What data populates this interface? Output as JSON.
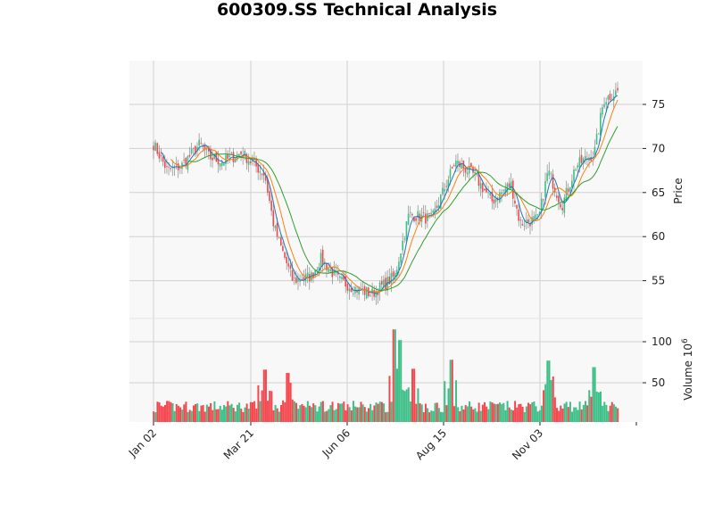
{
  "chart_data": {
    "type": "candlestick",
    "title": "600309.SS Technical Analysis",
    "panels": [
      {
        "name": "price",
        "ylabel": "Price",
        "yticks": [
          55,
          60,
          65,
          70,
          75
        ],
        "ylim": [
          50.4,
          80.4
        ],
        "grid": true,
        "axis_side": "right"
      },
      {
        "name": "volume",
        "ylabel": "Volume  10^6",
        "ylabel_base": "Volume",
        "ylabel_exp": "6",
        "yticks": [
          50,
          100
        ],
        "ylim": [
          0,
          120
        ],
        "grid": true,
        "axis_side": "right"
      }
    ],
    "xticks": [
      "Jan 02",
      "Mar 21",
      "Jun 06",
      "Aug 15",
      "Nov 03"
    ],
    "colors": {
      "up": "#3dbf87",
      "down": "#f6464d",
      "wick": "#888888",
      "ma_short": "#1f77b4",
      "ma_mid": "#ff7f0e",
      "ma_long": "#2ca02c",
      "panel_bg": "#f8f8f8",
      "grid": "#d0d0d0"
    },
    "moving_averages": [
      "MA short (blue)",
      "MA mid (orange)",
      "MA long (green)"
    ],
    "price_path_keypoints": [
      {
        "x_frac": 0.0,
        "close": 70.5
      },
      {
        "x_frac": 0.03,
        "close": 67.5
      },
      {
        "x_frac": 0.06,
        "close": 68.0
      },
      {
        "x_frac": 0.1,
        "close": 70.5
      },
      {
        "x_frac": 0.12,
        "close": 69.0
      },
      {
        "x_frac": 0.15,
        "close": 68.5
      },
      {
        "x_frac": 0.19,
        "close": 69.5
      },
      {
        "x_frac": 0.24,
        "close": 67.0
      },
      {
        "x_frac": 0.26,
        "close": 61.0
      },
      {
        "x_frac": 0.3,
        "close": 55.0
      },
      {
        "x_frac": 0.34,
        "close": 55.5
      },
      {
        "x_frac": 0.36,
        "close": 57.5
      },
      {
        "x_frac": 0.4,
        "close": 55.0
      },
      {
        "x_frac": 0.44,
        "close": 54.0
      },
      {
        "x_frac": 0.47,
        "close": 53.5
      },
      {
        "x_frac": 0.52,
        "close": 55.5
      },
      {
        "x_frac": 0.55,
        "close": 62.5
      },
      {
        "x_frac": 0.6,
        "close": 62.0
      },
      {
        "x_frac": 0.65,
        "close": 68.5
      },
      {
        "x_frac": 0.69,
        "close": 67.0
      },
      {
        "x_frac": 0.73,
        "close": 64.0
      },
      {
        "x_frac": 0.77,
        "close": 66.0
      },
      {
        "x_frac": 0.79,
        "close": 61.5
      },
      {
        "x_frac": 0.83,
        "close": 62.0
      },
      {
        "x_frac": 0.85,
        "close": 67.5
      },
      {
        "x_frac": 0.88,
        "close": 63.5
      },
      {
        "x_frac": 0.91,
        "close": 68.0
      },
      {
        "x_frac": 0.95,
        "close": 69.5
      },
      {
        "x_frac": 0.97,
        "close": 75.5
      },
      {
        "x_frac": 1.0,
        "close": 76.5
      }
    ],
    "volume_peaks": [
      {
        "x_frac": 0.24,
        "value": 66
      },
      {
        "x_frac": 0.29,
        "value": 62
      },
      {
        "x_frac": 0.52,
        "value": 115
      },
      {
        "x_frac": 0.53,
        "value": 102
      },
      {
        "x_frac": 0.56,
        "value": 67
      },
      {
        "x_frac": 0.64,
        "value": 78
      },
      {
        "x_frac": 0.85,
        "value": 77
      },
      {
        "x_frac": 0.95,
        "value": 69
      }
    ]
  }
}
